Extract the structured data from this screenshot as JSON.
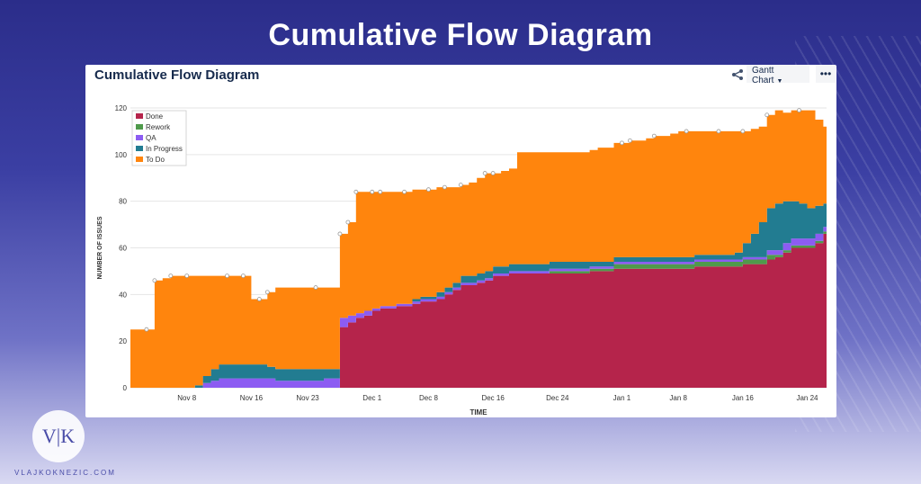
{
  "headline": "Cumulative Flow Diagram",
  "card": {
    "title": "Cumulative Flow Diagram",
    "share_icon": "share-icon",
    "view_button": "Gantt Chart",
    "more_button": "•••"
  },
  "branding": {
    "logo_text": "V|K",
    "site": "VLAJKOKNEZIC.COM"
  },
  "chart_data": {
    "type": "area",
    "stacked": true,
    "title": "",
    "xlabel": "TIME",
    "ylabel": "NUMBER OF ISSUES",
    "x_ticks": [
      "Nov 8",
      "Nov 16",
      "Nov 23",
      "Dec 1",
      "Dec 8",
      "Dec 16",
      "Dec 24",
      "Jan 1",
      "Jan 8",
      "Jan 16",
      "Jan 24"
    ],
    "x_tick_days": [
      8,
      16,
      23,
      31,
      38,
      46,
      54,
      62,
      69,
      77,
      85
    ],
    "xlim_days": [
      1,
      87.4
    ],
    "ylim": [
      0,
      120
    ],
    "y_ticks": [
      0,
      20,
      40,
      60,
      80,
      100,
      120
    ],
    "grid": true,
    "legend_position": "top-left",
    "colors": {
      "Done": "#b5244b",
      "Rework": "#4f9a4b",
      "QA": "#8c5cf2",
      "In Progress": "#227c91",
      "To Do": "#ff850d"
    },
    "days": [
      1,
      3,
      4,
      5,
      6,
      7,
      8,
      9,
      10,
      11,
      12,
      13,
      14,
      15,
      16,
      17,
      18,
      19,
      20,
      21,
      22,
      23,
      24,
      25,
      26,
      27,
      28,
      29,
      30,
      31,
      32,
      33,
      34,
      35,
      36,
      37,
      38,
      39,
      40,
      41,
      42,
      43,
      44,
      45,
      46,
      47,
      48,
      49,
      50,
      51,
      52,
      53,
      54,
      55,
      56,
      57,
      58,
      59,
      60,
      61,
      62,
      63,
      64,
      65,
      66,
      67,
      68,
      69,
      70,
      71,
      72,
      73,
      74,
      75,
      76,
      77,
      78,
      79,
      80,
      81,
      82,
      83,
      84,
      85,
      86,
      87
    ],
    "series": [
      {
        "name": "Done",
        "values": [
          0,
          0,
          0,
          0,
          0,
          0,
          0,
          0,
          0,
          0,
          0,
          0,
          0,
          0,
          0,
          0,
          0,
          0,
          0,
          0,
          0,
          0,
          0,
          0,
          0,
          26,
          28,
          30,
          31,
          33,
          34,
          34,
          35,
          35,
          36,
          37,
          37,
          38,
          40,
          42,
          44,
          44,
          45,
          46,
          48,
          48,
          49,
          49,
          49,
          49,
          49,
          49,
          49,
          49,
          49,
          49,
          50,
          50,
          50,
          51,
          51,
          51,
          51,
          51,
          51,
          51,
          51,
          51,
          51,
          52,
          52,
          52,
          52,
          52,
          52,
          53,
          53,
          53,
          55,
          56,
          58,
          60,
          60,
          60,
          62,
          66
        ]
      },
      {
        "name": "Rework",
        "values": [
          0,
          0,
          0,
          0,
          0,
          0,
          0,
          0,
          0,
          0,
          0,
          0,
          0,
          0,
          0,
          0,
          0,
          0,
          0,
          0,
          0,
          0,
          0,
          0,
          0,
          0,
          0,
          0,
          0,
          0,
          0,
          0,
          0,
          0,
          0,
          0,
          0,
          0,
          0,
          0,
          0,
          0,
          0,
          0,
          0,
          0,
          0,
          0,
          0,
          0,
          0,
          1,
          1,
          1,
          1,
          1,
          1,
          1,
          1,
          2,
          2,
          2,
          2,
          2,
          2,
          2,
          2,
          2,
          2,
          2,
          2,
          2,
          2,
          2,
          2,
          2,
          2,
          2,
          2,
          1,
          1,
          1,
          1,
          1,
          1,
          1
        ]
      },
      {
        "name": "QA",
        "values": [
          0,
          0,
          0,
          0,
          0,
          0,
          0,
          0,
          2,
          3,
          4,
          4,
          4,
          4,
          4,
          4,
          4,
          3,
          3,
          3,
          3,
          3,
          3,
          4,
          4,
          4,
          3,
          2,
          2,
          1,
          1,
          1,
          1,
          1,
          1,
          1,
          1,
          1,
          1,
          1,
          1,
          1,
          1,
          1,
          1,
          1,
          1,
          1,
          1,
          1,
          1,
          1,
          1,
          1,
          1,
          1,
          1,
          1,
          1,
          1,
          1,
          1,
          1,
          1,
          1,
          1,
          1,
          1,
          1,
          1,
          1,
          1,
          1,
          1,
          1,
          1,
          1,
          1,
          2,
          2,
          3,
          3,
          3,
          3,
          3,
          2
        ]
      },
      {
        "name": "In Progress",
        "values": [
          0,
          0,
          0,
          0,
          0,
          0,
          0,
          1,
          3,
          5,
          6,
          6,
          6,
          6,
          6,
          6,
          5,
          5,
          5,
          5,
          5,
          5,
          5,
          4,
          4,
          0,
          0,
          0,
          0,
          0,
          0,
          0,
          0,
          0,
          1,
          1,
          1,
          2,
          2,
          2,
          3,
          3,
          3,
          3,
          3,
          3,
          3,
          3,
          3,
          3,
          3,
          3,
          3,
          3,
          3,
          3,
          2,
          2,
          2,
          2,
          2,
          2,
          2,
          2,
          2,
          2,
          2,
          2,
          2,
          2,
          2,
          2,
          2,
          2,
          3,
          6,
          10,
          15,
          18,
          20,
          18,
          16,
          15,
          13,
          12,
          10
        ]
      },
      {
        "name": "To Do",
        "values": [
          25,
          25,
          46,
          47,
          48,
          48,
          48,
          47,
          43,
          40,
          38,
          38,
          38,
          38,
          28,
          28,
          32,
          35,
          35,
          35,
          35,
          35,
          35,
          35,
          35,
          36,
          40,
          52,
          51,
          50,
          49,
          49,
          48,
          48,
          47,
          46,
          46,
          45,
          43,
          41,
          39,
          40,
          41,
          42,
          40,
          41,
          41,
          48,
          48,
          48,
          48,
          47,
          47,
          47,
          47,
          47,
          48,
          49,
          49,
          49,
          49,
          50,
          50,
          51,
          52,
          52,
          53,
          54,
          54,
          53,
          53,
          53,
          53,
          53,
          52,
          48,
          45,
          41,
          40,
          40,
          38,
          39,
          40,
          42,
          37,
          33
        ]
      }
    ]
  }
}
